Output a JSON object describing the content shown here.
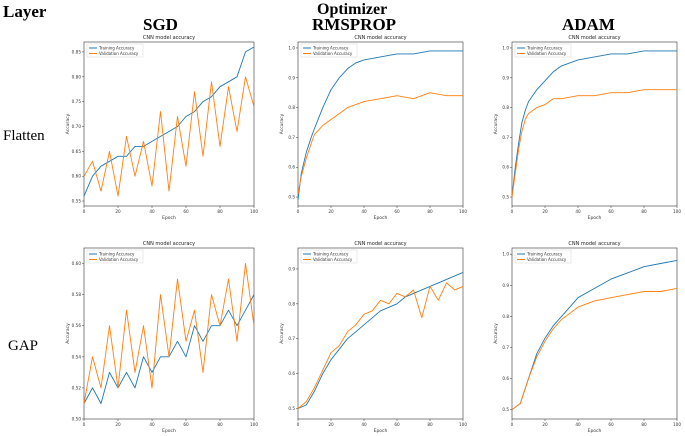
{
  "header": {
    "layer_label": "Layer",
    "optimizer_label": "Optimizer",
    "columns": [
      "SGD",
      "RMSPROP",
      "ADAM"
    ]
  },
  "rows": [
    "Flatten",
    "GAP"
  ],
  "colors": {
    "train": "#1f77b4",
    "val": "#ff7f0e"
  },
  "chart_data": [
    {
      "type": "line",
      "row": "Flatten",
      "optimizer": "SGD",
      "title": "CNN model accuracy",
      "xlabel": "Epoch",
      "ylabel": "Accuracy",
      "xlim": [
        0,
        100
      ],
      "ylim": [
        0.54,
        0.87
      ],
      "xticks": [
        "0",
        "20",
        "40",
        "60",
        "80",
        "100"
      ],
      "xtick_values": [
        0,
        20,
        40,
        60,
        80,
        100
      ],
      "yticks": [
        "0.55",
        "0.60",
        "0.65",
        "0.70",
        "0.75",
        "0.80",
        "0.85"
      ],
      "ytick_values": [
        0.55,
        0.6,
        0.65,
        0.7,
        0.75,
        0.8,
        0.85
      ],
      "legend": [
        "Training Accuracy",
        "Validation Accuracy"
      ],
      "series": [
        {
          "name": "Training Accuracy",
          "x": [
            0,
            5,
            10,
            15,
            20,
            25,
            30,
            35,
            40,
            45,
            50,
            55,
            60,
            65,
            70,
            75,
            80,
            85,
            90,
            95,
            100
          ],
          "values": [
            0.56,
            0.6,
            0.62,
            0.63,
            0.64,
            0.64,
            0.66,
            0.66,
            0.67,
            0.68,
            0.69,
            0.7,
            0.72,
            0.73,
            0.75,
            0.76,
            0.78,
            0.79,
            0.8,
            0.85,
            0.86
          ]
        },
        {
          "name": "Validation Accuracy",
          "x": [
            0,
            5,
            10,
            15,
            20,
            25,
            30,
            35,
            40,
            45,
            50,
            55,
            60,
            65,
            70,
            75,
            80,
            85,
            90,
            95,
            100
          ],
          "values": [
            0.6,
            0.63,
            0.57,
            0.65,
            0.56,
            0.68,
            0.6,
            0.67,
            0.58,
            0.73,
            0.57,
            0.72,
            0.62,
            0.77,
            0.64,
            0.79,
            0.66,
            0.78,
            0.69,
            0.8,
            0.74
          ]
        }
      ]
    },
    {
      "type": "line",
      "row": "Flatten",
      "optimizer": "RMSPROP",
      "title": "CNN model accuracy",
      "xlabel": "Epoch",
      "ylabel": "Accuracy",
      "xlim": [
        0,
        100
      ],
      "ylim": [
        0.47,
        1.02
      ],
      "xticks": [
        "0",
        "20",
        "40",
        "60",
        "80",
        "100"
      ],
      "xtick_values": [
        0,
        20,
        40,
        60,
        80,
        100
      ],
      "yticks": [
        "0.5",
        "0.6",
        "0.7",
        "0.8",
        "0.9",
        "1.0"
      ],
      "ytick_values": [
        0.5,
        0.6,
        0.7,
        0.8,
        0.9,
        1.0
      ],
      "legend": [
        "Training Accuracy",
        "Validation Accuracy"
      ],
      "series": [
        {
          "name": "Training Accuracy",
          "x": [
            0,
            2,
            5,
            8,
            10,
            15,
            20,
            25,
            30,
            35,
            40,
            50,
            60,
            70,
            80,
            90,
            100
          ],
          "values": [
            0.49,
            0.58,
            0.65,
            0.7,
            0.73,
            0.8,
            0.86,
            0.9,
            0.93,
            0.95,
            0.96,
            0.97,
            0.98,
            0.98,
            0.99,
            0.99,
            0.99
          ]
        },
        {
          "name": "Validation Accuracy",
          "x": [
            0,
            2,
            5,
            8,
            10,
            15,
            20,
            25,
            30,
            35,
            40,
            50,
            60,
            70,
            80,
            90,
            100
          ],
          "values": [
            0.51,
            0.57,
            0.63,
            0.68,
            0.71,
            0.74,
            0.76,
            0.78,
            0.8,
            0.81,
            0.82,
            0.83,
            0.84,
            0.83,
            0.85,
            0.84,
            0.84
          ]
        }
      ]
    },
    {
      "type": "line",
      "row": "Flatten",
      "optimizer": "ADAM",
      "title": "CNN model accuracy",
      "xlabel": "Epoch",
      "ylabel": "Accuracy",
      "xlim": [
        0,
        100
      ],
      "ylim": [
        0.47,
        1.02
      ],
      "xticks": [
        "0",
        "20",
        "40",
        "60",
        "80",
        "100"
      ],
      "xtick_values": [
        0,
        20,
        40,
        60,
        80,
        100
      ],
      "yticks": [
        "0.5",
        "0.6",
        "0.7",
        "0.8",
        "0.9",
        "1.0"
      ],
      "ytick_values": [
        0.5,
        0.6,
        0.7,
        0.8,
        0.9,
        1.0
      ],
      "legend": [
        "Training Accuracy",
        "Validation Accuracy"
      ],
      "series": [
        {
          "name": "Training Accuracy",
          "x": [
            0,
            2,
            4,
            6,
            8,
            10,
            15,
            20,
            25,
            30,
            40,
            50,
            60,
            70,
            80,
            90,
            100
          ],
          "values": [
            0.5,
            0.6,
            0.68,
            0.75,
            0.79,
            0.82,
            0.86,
            0.89,
            0.92,
            0.94,
            0.96,
            0.97,
            0.98,
            0.98,
            0.99,
            0.99,
            0.99
          ]
        },
        {
          "name": "Validation Accuracy",
          "x": [
            0,
            2,
            4,
            6,
            8,
            10,
            15,
            20,
            25,
            30,
            40,
            50,
            60,
            70,
            80,
            90,
            100
          ],
          "values": [
            0.5,
            0.58,
            0.66,
            0.72,
            0.76,
            0.78,
            0.8,
            0.81,
            0.83,
            0.83,
            0.84,
            0.84,
            0.85,
            0.85,
            0.86,
            0.86,
            0.86
          ]
        }
      ]
    },
    {
      "type": "line",
      "row": "GAP",
      "optimizer": "SGD",
      "title": "CNN model accuracy",
      "xlabel": "Epoch",
      "ylabel": "Accuracy",
      "xlim": [
        0,
        100
      ],
      "ylim": [
        0.5,
        0.61
      ],
      "xticks": [
        "0",
        "20",
        "40",
        "60",
        "80",
        "100"
      ],
      "xtick_values": [
        0,
        20,
        40,
        60,
        80,
        100
      ],
      "yticks": [
        "0.50",
        "0.52",
        "0.54",
        "0.56",
        "0.58",
        "0.60"
      ],
      "ytick_values": [
        0.5,
        0.52,
        0.54,
        0.56,
        0.58,
        0.6
      ],
      "legend": [
        "Training Accuracy",
        "Validation Accuracy"
      ],
      "series": [
        {
          "name": "Training Accuracy",
          "x": [
            0,
            5,
            10,
            15,
            20,
            25,
            30,
            35,
            40,
            45,
            50,
            55,
            60,
            65,
            70,
            75,
            80,
            85,
            90,
            95,
            100
          ],
          "values": [
            0.51,
            0.52,
            0.51,
            0.53,
            0.52,
            0.53,
            0.52,
            0.54,
            0.53,
            0.54,
            0.54,
            0.55,
            0.54,
            0.56,
            0.55,
            0.56,
            0.56,
            0.57,
            0.56,
            0.57,
            0.58
          ]
        },
        {
          "name": "Validation Accuracy",
          "x": [
            0,
            5,
            10,
            15,
            20,
            25,
            30,
            35,
            40,
            45,
            50,
            55,
            60,
            65,
            70,
            75,
            80,
            85,
            90,
            95,
            100
          ],
          "values": [
            0.51,
            0.54,
            0.52,
            0.56,
            0.52,
            0.57,
            0.53,
            0.56,
            0.52,
            0.58,
            0.54,
            0.59,
            0.55,
            0.57,
            0.53,
            0.58,
            0.56,
            0.59,
            0.55,
            0.6,
            0.56
          ]
        }
      ]
    },
    {
      "type": "line",
      "row": "GAP",
      "optimizer": "RMSPROP",
      "title": "CNN model accuracy",
      "xlabel": "Epoch",
      "ylabel": "Accuracy",
      "xlim": [
        0,
        100
      ],
      "ylim": [
        0.47,
        0.96
      ],
      "xticks": [
        "0",
        "20",
        "40",
        "60",
        "80",
        "100"
      ],
      "xtick_values": [
        0,
        20,
        40,
        60,
        80,
        100
      ],
      "yticks": [
        "0.5",
        "0.6",
        "0.7",
        "0.8",
        "0.9"
      ],
      "ytick_values": [
        0.5,
        0.6,
        0.7,
        0.8,
        0.9
      ],
      "legend": [
        "Training Accuracy",
        "Validation Accuracy"
      ],
      "series": [
        {
          "name": "Training Accuracy",
          "x": [
            0,
            5,
            10,
            15,
            20,
            25,
            30,
            35,
            40,
            45,
            50,
            55,
            60,
            65,
            70,
            75,
            80,
            85,
            90,
            95,
            100
          ],
          "values": [
            0.5,
            0.51,
            0.55,
            0.6,
            0.64,
            0.67,
            0.7,
            0.72,
            0.74,
            0.76,
            0.78,
            0.79,
            0.8,
            0.82,
            0.83,
            0.84,
            0.85,
            0.86,
            0.87,
            0.88,
            0.89
          ]
        },
        {
          "name": "Validation Accuracy",
          "x": [
            0,
            5,
            10,
            15,
            20,
            25,
            30,
            35,
            40,
            45,
            50,
            55,
            60,
            65,
            70,
            75,
            80,
            85,
            90,
            95,
            100
          ],
          "values": [
            0.5,
            0.52,
            0.56,
            0.61,
            0.66,
            0.68,
            0.72,
            0.74,
            0.77,
            0.78,
            0.81,
            0.8,
            0.83,
            0.82,
            0.84,
            0.76,
            0.85,
            0.81,
            0.86,
            0.84,
            0.85
          ]
        }
      ]
    },
    {
      "type": "line",
      "row": "GAP",
      "optimizer": "ADAM",
      "title": "CNN model accuracy",
      "xlabel": "Epoch",
      "ylabel": "Accuracy",
      "xlim": [
        0,
        100
      ],
      "ylim": [
        0.47,
        1.02
      ],
      "xticks": [
        "0",
        "20",
        "40",
        "60",
        "80",
        "100"
      ],
      "xtick_values": [
        0,
        20,
        40,
        60,
        80,
        100
      ],
      "yticks": [
        "0.5",
        "0.6",
        "0.7",
        "0.8",
        "0.9",
        "1.0"
      ],
      "ytick_values": [
        0.5,
        0.6,
        0.7,
        0.8,
        0.9,
        1.0
      ],
      "legend": [
        "Training Accuracy",
        "Validation Accuracy"
      ],
      "series": [
        {
          "name": "Training Accuracy",
          "x": [
            0,
            5,
            10,
            15,
            20,
            25,
            30,
            35,
            40,
            50,
            60,
            70,
            80,
            90,
            100
          ],
          "values": [
            0.5,
            0.52,
            0.6,
            0.68,
            0.73,
            0.77,
            0.8,
            0.83,
            0.86,
            0.89,
            0.92,
            0.94,
            0.96,
            0.97,
            0.98
          ]
        },
        {
          "name": "Validation Accuracy",
          "x": [
            0,
            5,
            10,
            15,
            20,
            25,
            30,
            35,
            40,
            50,
            60,
            70,
            80,
            90,
            100
          ],
          "values": [
            0.5,
            0.52,
            0.6,
            0.67,
            0.72,
            0.76,
            0.79,
            0.81,
            0.83,
            0.85,
            0.86,
            0.87,
            0.88,
            0.88,
            0.89
          ]
        }
      ]
    }
  ]
}
